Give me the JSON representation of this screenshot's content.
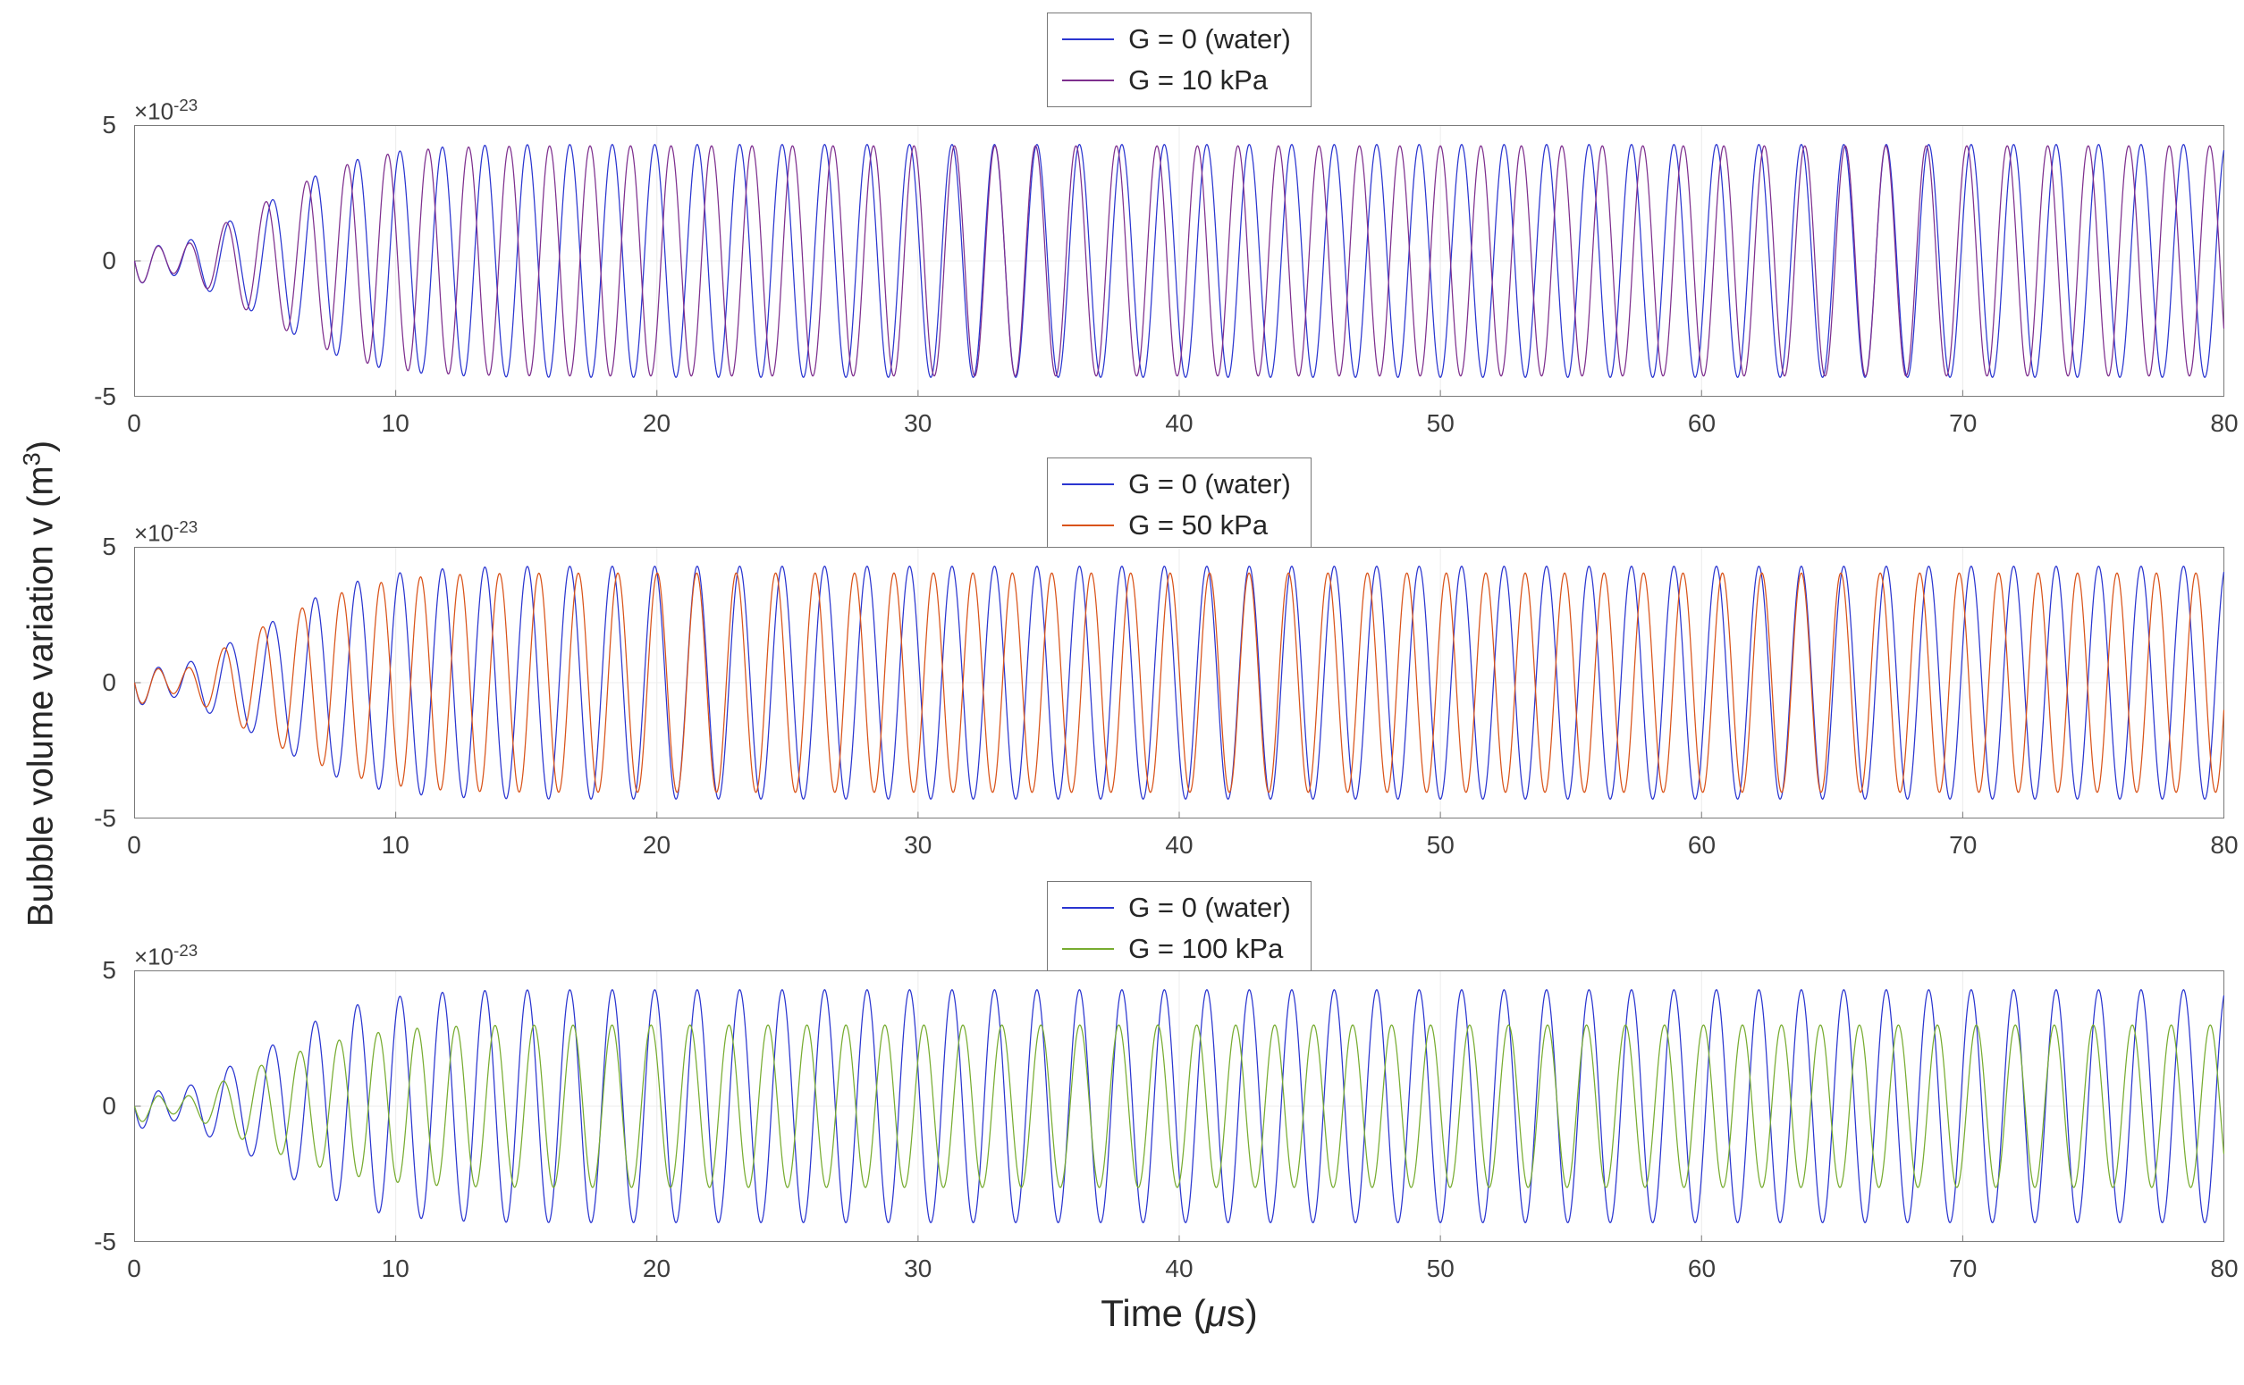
{
  "figure": {
    "ylabel_pre": "Bubble volume variation v (m",
    "ylabel_sup": "3",
    "ylabel_post": ")",
    "xlabel_pre": "Time (",
    "xlabel_mu": "μ",
    "xlabel_post": "s)",
    "y_exponent_base": "×10",
    "y_exponent_power": "-23"
  },
  "chart_data": {
    "type": "line",
    "layout": "three stacked subplots sharing the same x and y axes",
    "title": "",
    "xlabel": "Time (μs)",
    "ylabel": "Bubble volume variation v (m³)",
    "x_range": [
      0,
      80
    ],
    "xticks": [
      0,
      10,
      20,
      30,
      40,
      50,
      60,
      70,
      80
    ],
    "y_range": [
      -5,
      5
    ],
    "yticks": [
      5,
      0,
      -5
    ],
    "y_scale_exponent": -23,
    "grid": true,
    "grid_color": "#ececec",
    "axis_color": "#7a7a7a",
    "rise_power": 2,
    "model": "v(t) = amp*(1-exp(-(t/rise)^rise_power))*sin(2*pi*freq*t + phase) - amp*transient_amp*exp(-t/transient_decay)*sin(2*pi*transient_freq*t); t in microseconds, v in units of 1e-23 m^3",
    "plots": [
      {
        "legend_position": "above center",
        "series": [
          {
            "label": "G = 0 (water)",
            "color": "#2a35d0",
            "amp": 4.3,
            "freq": 0.615,
            "phase": 0,
            "rise": 6,
            "transient_amp": 0.22,
            "transient_freq": 0.78,
            "transient_decay": 2.2
          },
          {
            "label": "G = 10 kPa",
            "color": "#7E2F8E",
            "amp": 4.25,
            "freq": 0.645,
            "phase": 0,
            "rise": 6,
            "transient_amp": 0.22,
            "transient_freq": 0.78,
            "transient_decay": 2.2
          }
        ]
      },
      {
        "legend_position": "above center",
        "series": [
          {
            "label": "G = 0 (water)",
            "color": "#2a35d0",
            "amp": 4.3,
            "freq": 0.615,
            "phase": 0,
            "rise": 6,
            "transient_amp": 0.22,
            "transient_freq": 0.78,
            "transient_decay": 2.2
          },
          {
            "label": "G = 50 kPa",
            "color": "#D95319",
            "amp": 4.05,
            "freq": 0.662,
            "phase": 0,
            "rise": 6,
            "transient_amp": 0.22,
            "transient_freq": 0.78,
            "transient_decay": 2.2
          }
        ]
      },
      {
        "legend_position": "above center",
        "series": [
          {
            "label": "G = 0 (water)",
            "color": "#2a35d0",
            "amp": 4.3,
            "freq": 0.615,
            "phase": 0,
            "rise": 6,
            "transient_amp": 0.22,
            "transient_freq": 0.78,
            "transient_decay": 2.2
          },
          {
            "label": "G = 100 kPa",
            "color": "#77AC30",
            "amp": 3.0,
            "freq": 0.67,
            "phase": 0,
            "rise": 6,
            "transient_amp": 0.22,
            "transient_freq": 0.78,
            "transient_decay": 2.2
          }
        ]
      }
    ]
  }
}
